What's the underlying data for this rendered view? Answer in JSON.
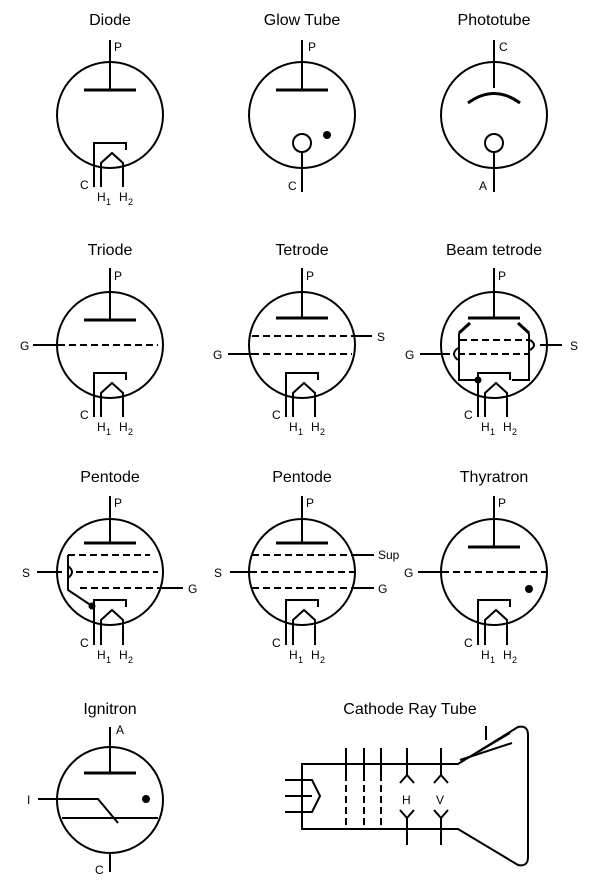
{
  "tubes": {
    "diode": {
      "title": "Diode",
      "p": "P",
      "c": "C",
      "h": "H",
      "h1": "1",
      "h2": "2"
    },
    "glow": {
      "title": "Glow Tube",
      "p": "P",
      "c": "C"
    },
    "photo": {
      "title": "Phototube",
      "c": "C",
      "a": "A"
    },
    "triode": {
      "title": "Triode",
      "p": "P",
      "g": "G",
      "c": "C",
      "h": "H",
      "h1": "1",
      "h2": "2"
    },
    "tetrode": {
      "title": "Tetrode",
      "p": "P",
      "g": "G",
      "s": "S",
      "c": "C",
      "h": "H",
      "h1": "1",
      "h2": "2"
    },
    "beam": {
      "title": "Beam tetrode",
      "p": "P",
      "g": "G",
      "s": "S",
      "c": "C",
      "h": "H",
      "h1": "1",
      "h2": "2"
    },
    "pentode1": {
      "title": "Pentode",
      "p": "P",
      "s": "S",
      "g": "G",
      "c": "C",
      "h": "H",
      "h1": "1",
      "h2": "2"
    },
    "pentode2": {
      "title": "Pentode",
      "p": "P",
      "s": "S",
      "sup": "Sup",
      "g": "G",
      "c": "C",
      "h": "H",
      "h1": "1",
      "h2": "2"
    },
    "thyratron": {
      "title": "Thyratron",
      "p": "P",
      "g": "G",
      "c": "C",
      "h": "H",
      "h1": "1",
      "h2": "2"
    },
    "ignitron": {
      "title": "Ignitron",
      "a": "A",
      "i": "I",
      "c": "C"
    },
    "crt": {
      "title": "Cathode Ray Tube",
      "h": "H",
      "v": "V"
    }
  }
}
